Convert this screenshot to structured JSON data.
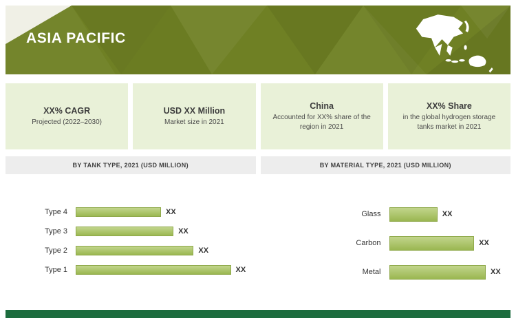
{
  "banner": {
    "title": "ASIA PACIFIC"
  },
  "stats": [
    {
      "title": "XX% CAGR",
      "subtitle": "Projected (2022–2030)"
    },
    {
      "title": "USD XX Million",
      "subtitle": "Market size in 2021"
    },
    {
      "title": "China",
      "subtitle": "Accounted for XX% share of the region in 2021"
    },
    {
      "title": "XX% Share",
      "subtitle": "in the global hydrogen storage tanks market in 2021"
    }
  ],
  "chart_data": [
    {
      "type": "bar",
      "orientation": "horizontal",
      "title": "BY TANK TYPE, 2021 (USD MILLION)",
      "categories": [
        "Type 4",
        "Type 3",
        "Type 2",
        "Type 1"
      ],
      "values": [
        55,
        63,
        76,
        100
      ],
      "value_labels": [
        "XX",
        "XX",
        "XX",
        "XX"
      ],
      "note": "Numeric values are masked as XX in the source; values[] are estimated relative bar lengths with the longest bar = 100."
    },
    {
      "type": "bar",
      "orientation": "horizontal",
      "title": "BY MATERIAL TYPE, 2021 (USD MILLION)",
      "categories": [
        "Glass",
        "Carbon",
        "Metal"
      ],
      "values": [
        50,
        88,
        100
      ],
      "value_labels": [
        "XX",
        "XX",
        "XX"
      ],
      "note": "Numeric values are masked as XX in the source; values[] are estimated relative bar lengths with the longest bar = 100."
    }
  ],
  "colors": {
    "banner_green": "#6f8024",
    "card_bg": "#e9f1d8",
    "bar_fill": "#9ab751",
    "section_header_bg": "#ededed",
    "footer_green": "#1c6c3e"
  }
}
